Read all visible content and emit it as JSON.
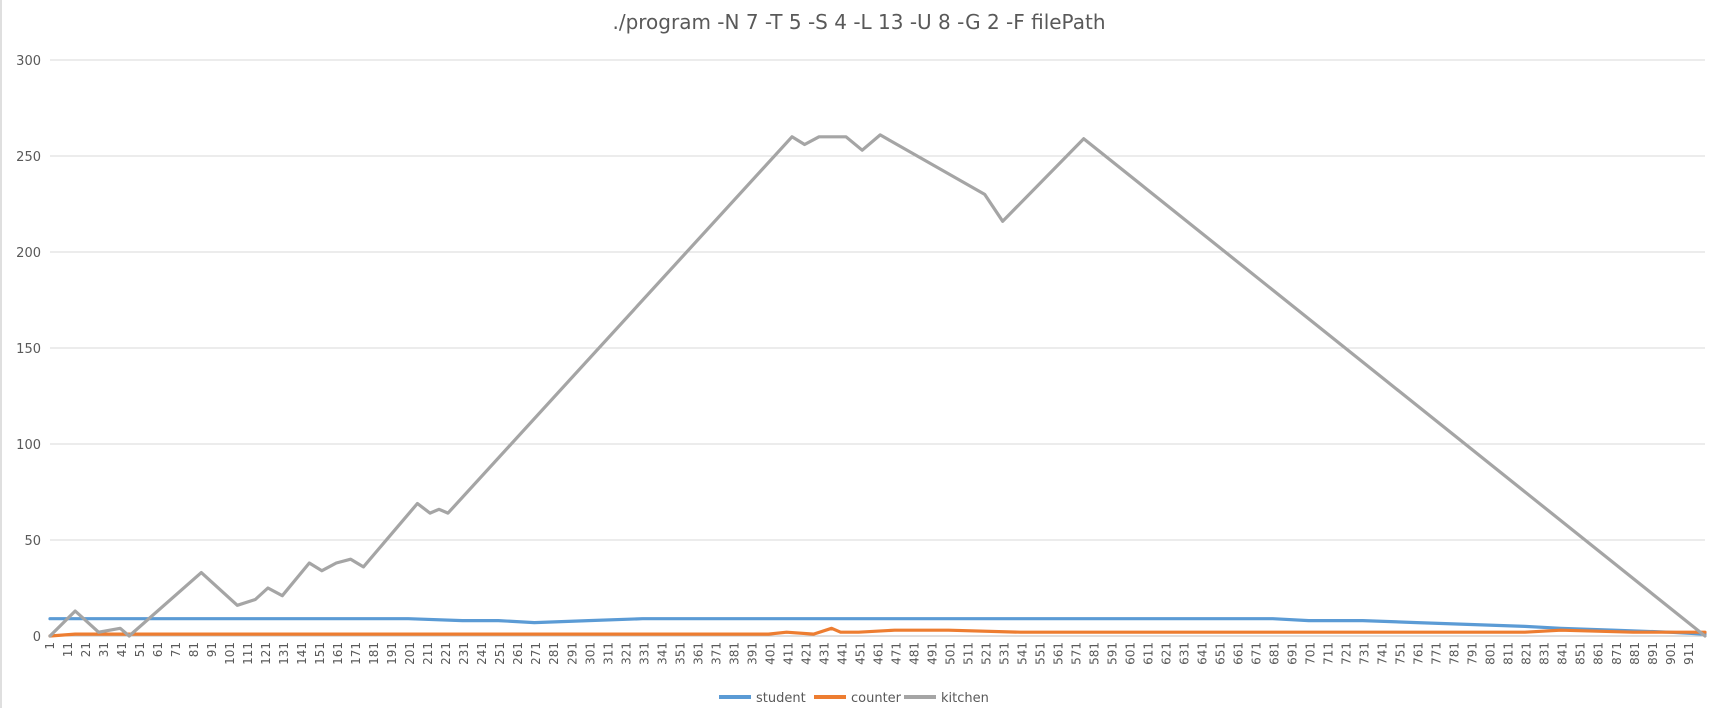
{
  "chart_data": {
    "type": "line",
    "title": "./program -N 7 -T 5 -S 4 -L 13 -U 8 -G 2 -F filePath",
    "xlabel": "",
    "ylabel": "",
    "ylim": [
      0,
      300
    ],
    "yticks": [
      0,
      50,
      100,
      150,
      200,
      250,
      300
    ],
    "xlim": [
      1,
      920
    ],
    "xtick_start": 1,
    "xtick_step": 10,
    "xtick_end": 911,
    "grid": true,
    "legend": "bottom",
    "series": [
      {
        "name": "student",
        "color": "#5b9bd5",
        "points": [
          [
            1,
            9
          ],
          [
            15,
            9
          ],
          [
            30,
            9
          ],
          [
            60,
            9
          ],
          [
            90,
            9
          ],
          [
            120,
            9
          ],
          [
            150,
            9
          ],
          [
            180,
            9
          ],
          [
            200,
            9
          ],
          [
            230,
            8
          ],
          [
            250,
            8
          ],
          [
            270,
            7
          ],
          [
            300,
            8
          ],
          [
            330,
            9
          ],
          [
            360,
            9
          ],
          [
            400,
            9
          ],
          [
            430,
            9
          ],
          [
            460,
            9
          ],
          [
            500,
            9
          ],
          [
            540,
            9
          ],
          [
            570,
            9
          ],
          [
            600,
            9
          ],
          [
            640,
            9
          ],
          [
            680,
            9
          ],
          [
            700,
            8
          ],
          [
            730,
            8
          ],
          [
            760,
            7
          ],
          [
            790,
            6
          ],
          [
            820,
            5
          ],
          [
            840,
            4
          ],
          [
            870,
            3
          ],
          [
            900,
            2
          ],
          [
            920,
            1
          ]
        ]
      },
      {
        "name": "counter",
        "color": "#ed7d31",
        "points": [
          [
            1,
            0
          ],
          [
            15,
            1
          ],
          [
            40,
            1
          ],
          [
            80,
            1
          ],
          [
            120,
            1
          ],
          [
            160,
            1
          ],
          [
            200,
            1
          ],
          [
            240,
            1
          ],
          [
            280,
            1
          ],
          [
            320,
            1
          ],
          [
            360,
            1
          ],
          [
            400,
            1
          ],
          [
            410,
            2
          ],
          [
            425,
            1
          ],
          [
            435,
            4
          ],
          [
            440,
            2
          ],
          [
            450,
            2
          ],
          [
            470,
            3
          ],
          [
            500,
            3
          ],
          [
            540,
            2
          ],
          [
            570,
            2
          ],
          [
            600,
            2
          ],
          [
            640,
            2
          ],
          [
            700,
            2
          ],
          [
            760,
            2
          ],
          [
            820,
            2
          ],
          [
            840,
            3
          ],
          [
            880,
            2
          ],
          [
            920,
            2
          ]
        ]
      },
      {
        "name": "kitchen",
        "color": "#a5a5a5",
        "points": [
          [
            1,
            0
          ],
          [
            15,
            13
          ],
          [
            28,
            2
          ],
          [
            40,
            4
          ],
          [
            45,
            0
          ],
          [
            85,
            33
          ],
          [
            105,
            16
          ],
          [
            115,
            19
          ],
          [
            122,
            25
          ],
          [
            130,
            21
          ],
          [
            145,
            38
          ],
          [
            152,
            34
          ],
          [
            160,
            38
          ],
          [
            168,
            40
          ],
          [
            175,
            36
          ],
          [
            205,
            69
          ],
          [
            212,
            64
          ],
          [
            217,
            66
          ],
          [
            222,
            64
          ],
          [
            413,
            260
          ],
          [
            420,
            256
          ],
          [
            428,
            260
          ],
          [
            443,
            260
          ],
          [
            452,
            253
          ],
          [
            462,
            261
          ],
          [
            520,
            230
          ],
          [
            530,
            216
          ],
          [
            575,
            259
          ],
          [
            920,
            0
          ]
        ]
      }
    ]
  }
}
